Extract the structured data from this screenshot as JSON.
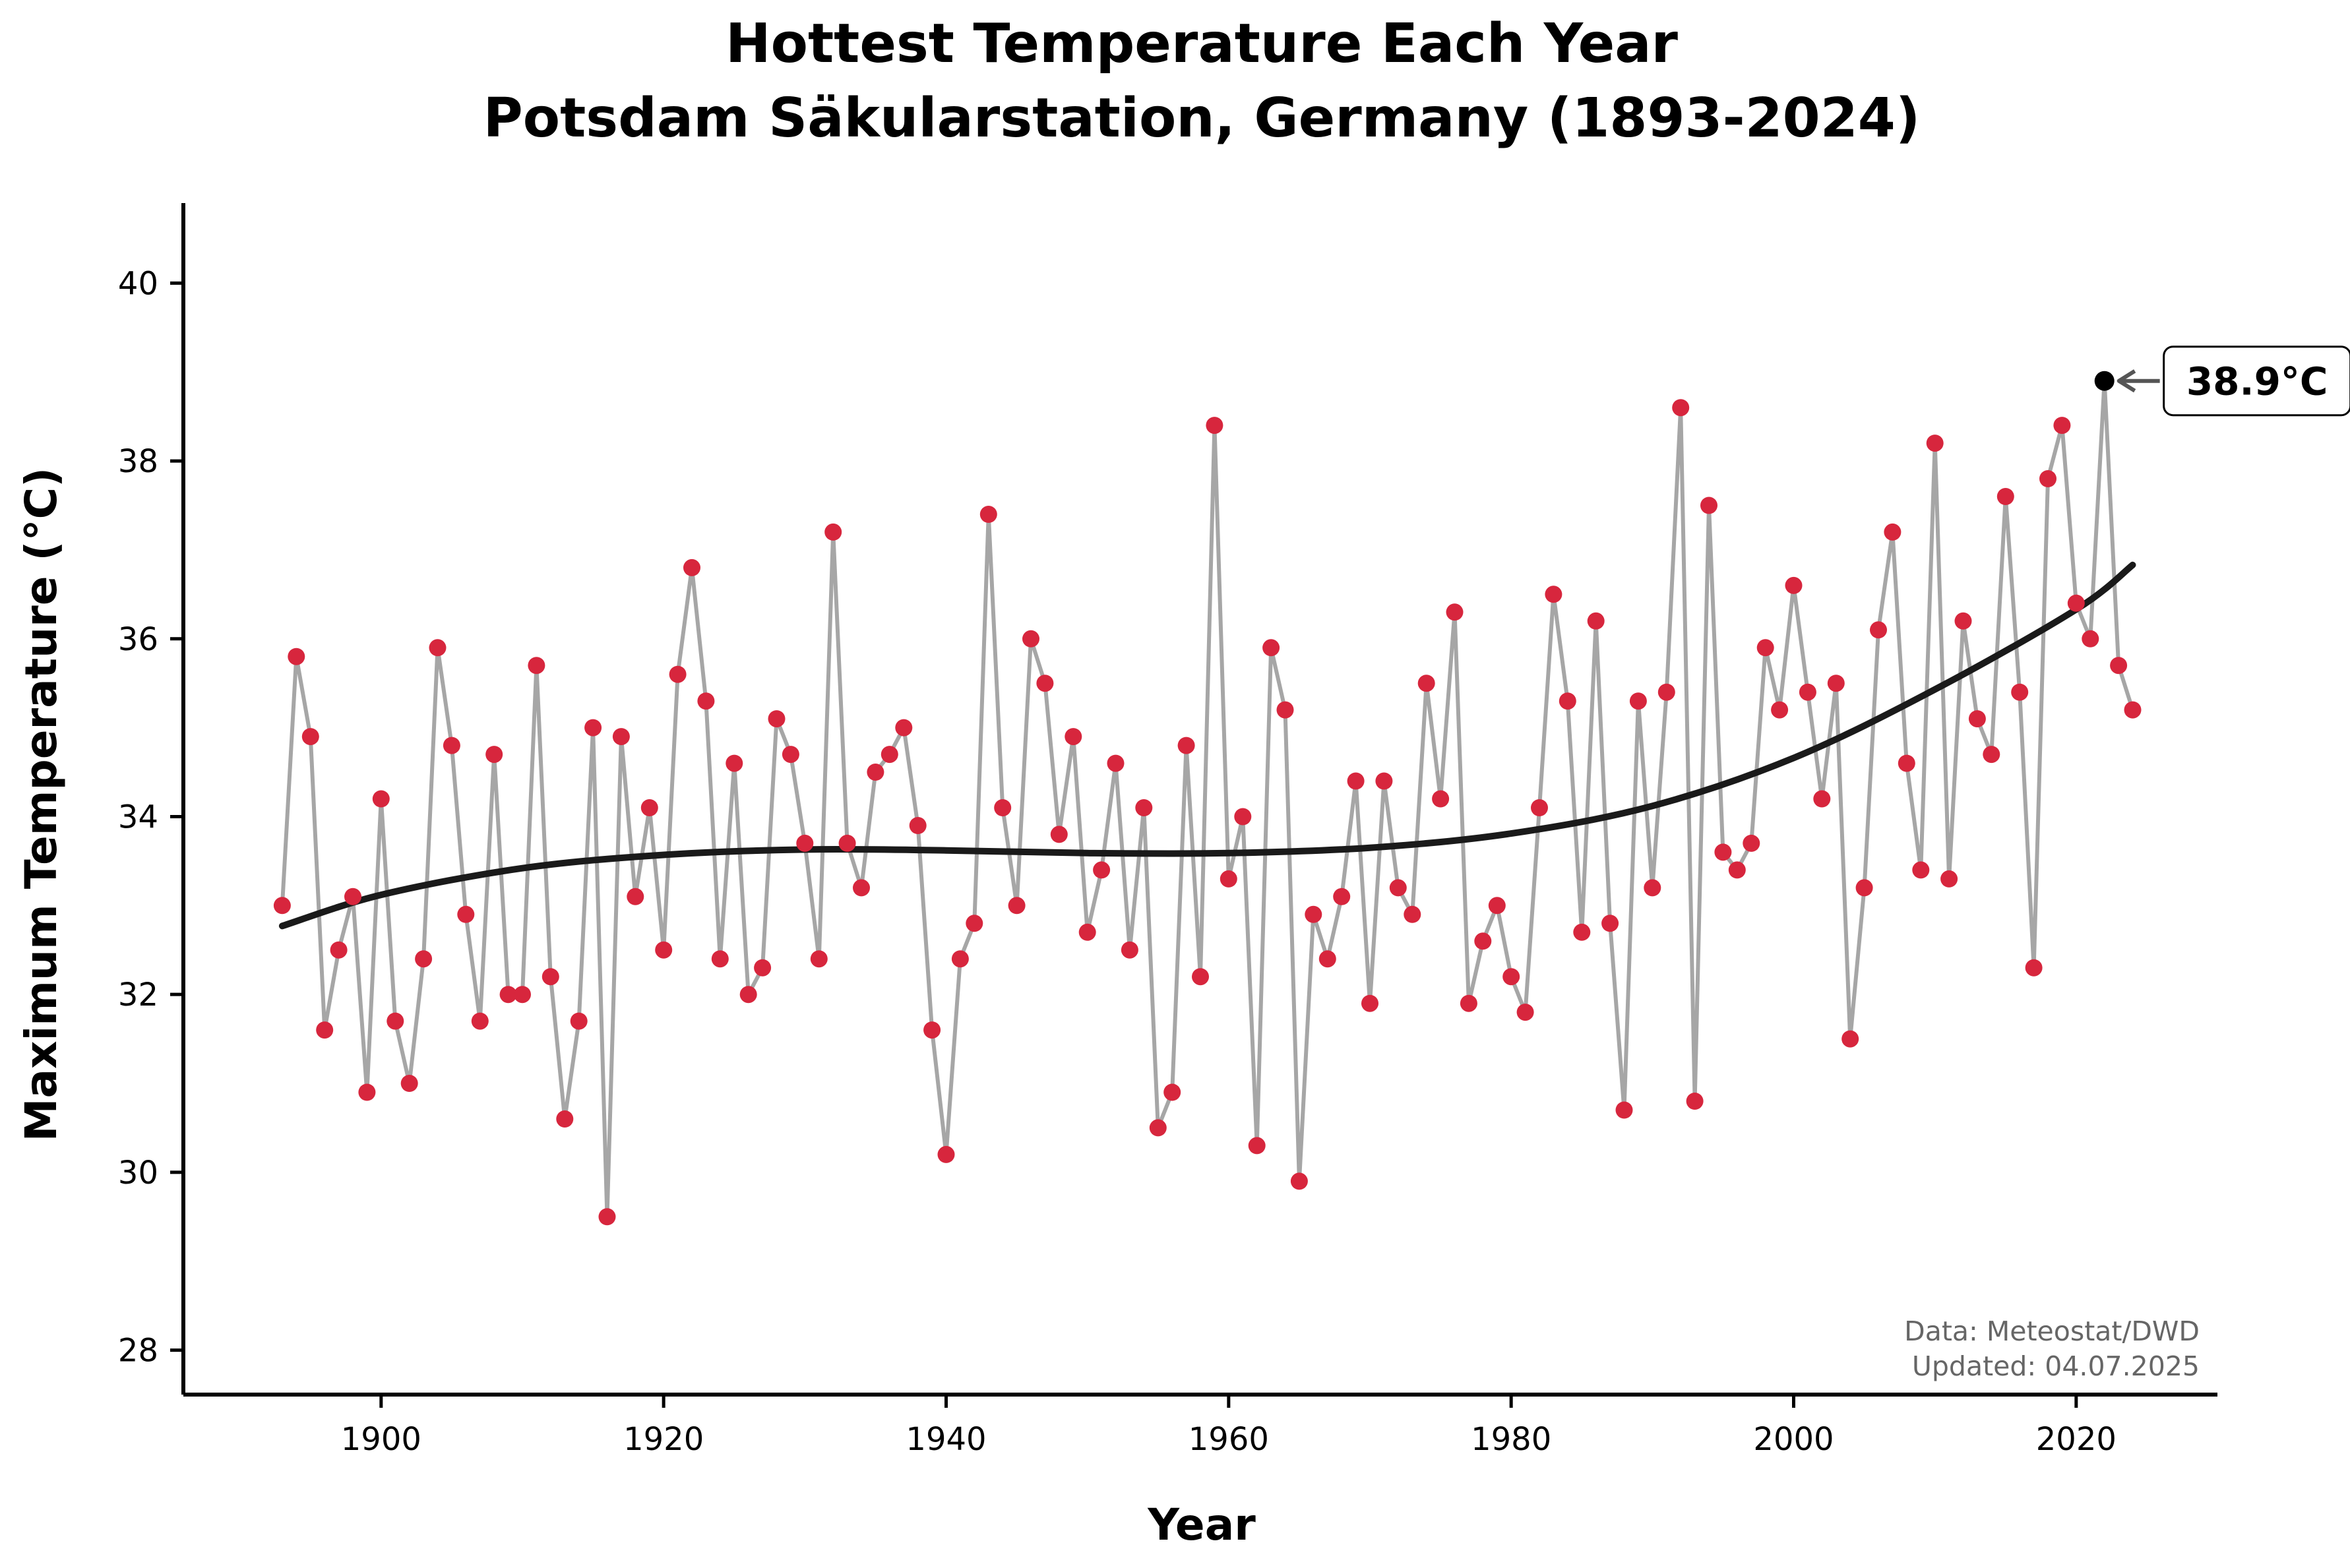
{
  "chart_data": {
    "type": "line",
    "title": "Hottest Temperature Each Year",
    "subtitle": "Potsdam Säkularstation, Germany (1893-2024)",
    "xlabel": "Year",
    "ylabel": "Maximum Temperature (°C)",
    "xlim": [
      1886,
      2030
    ],
    "ylim": [
      27.5,
      40.9
    ],
    "xticks": [
      1900,
      1920,
      1940,
      1960,
      1980,
      2000,
      2020
    ],
    "yticks": [
      28,
      30,
      32,
      34,
      36,
      38,
      40
    ],
    "grid": false,
    "colors": {
      "line": "#a6a6a6",
      "points": "#d7263d",
      "trend": "#1a1a1a",
      "highlight": "#000000",
      "source_text": "#666666",
      "arrow": "#555555"
    },
    "series": [
      {
        "style": "line-with-markers",
        "x": [
          1893,
          1894,
          1895,
          1896,
          1897,
          1898,
          1899,
          1900,
          1901,
          1902,
          1903,
          1904,
          1905,
          1906,
          1907,
          1908,
          1909,
          1910,
          1911,
          1912,
          1913,
          1914,
          1915,
          1916,
          1917,
          1918,
          1919,
          1920,
          1921,
          1922,
          1923,
          1924,
          1925,
          1926,
          1927,
          1928,
          1929,
          1930,
          1931,
          1932,
          1933,
          1934,
          1935,
          1936,
          1937,
          1938,
          1939,
          1940,
          1941,
          1942,
          1943,
          1944,
          1945,
          1946,
          1947,
          1948,
          1949,
          1950,
          1951,
          1952,
          1953,
          1954,
          1955,
          1956,
          1957,
          1958,
          1959,
          1960,
          1961,
          1962,
          1963,
          1964,
          1965,
          1966,
          1967,
          1968,
          1969,
          1970,
          1971,
          1972,
          1973,
          1974,
          1975,
          1976,
          1977,
          1978,
          1979,
          1980,
          1981,
          1982,
          1983,
          1984,
          1985,
          1986,
          1987,
          1988,
          1989,
          1990,
          1991,
          1992,
          1993,
          1994,
          1995,
          1996,
          1997,
          1998,
          1999,
          2000,
          2001,
          2002,
          2003,
          2004,
          2005,
          2006,
          2007,
          2008,
          2009,
          2010,
          2011,
          2012,
          2013,
          2014,
          2015,
          2016,
          2017,
          2018,
          2019,
          2020,
          2021,
          2022,
          2023,
          2024
        ],
        "values": [
          33.0,
          35.8,
          34.9,
          31.6,
          32.5,
          33.1,
          30.9,
          34.2,
          31.7,
          31.0,
          32.4,
          35.9,
          34.8,
          32.9,
          31.7,
          34.7,
          32.0,
          32.0,
          35.7,
          32.2,
          30.6,
          31.7,
          35.0,
          29.5,
          34.9,
          33.1,
          34.1,
          32.5,
          35.6,
          36.8,
          35.3,
          32.4,
          34.6,
          32.0,
          32.3,
          35.1,
          34.7,
          33.7,
          32.4,
          37.2,
          33.7,
          33.2,
          34.5,
          34.7,
          35.0,
          33.9,
          31.6,
          30.2,
          32.4,
          32.8,
          37.4,
          34.1,
          33.0,
          36.0,
          35.5,
          33.8,
          34.9,
          32.7,
          33.4,
          34.6,
          32.5,
          34.1,
          30.5,
          30.9,
          34.8,
          32.2,
          38.4,
          33.3,
          34.0,
          30.3,
          35.9,
          35.2,
          29.9,
          32.9,
          32.4,
          33.1,
          34.4,
          31.9,
          34.4,
          33.2,
          32.9,
          35.5,
          34.2,
          36.3,
          31.9,
          32.6,
          33.0,
          32.2,
          31.8,
          34.1,
          36.5,
          35.3,
          32.7,
          36.2,
          32.8,
          30.7,
          35.3,
          33.2,
          35.4,
          38.6,
          30.8,
          37.5,
          33.6,
          33.4,
          33.7,
          35.9,
          35.2,
          36.6,
          35.4,
          34.2,
          35.5,
          31.5,
          33.2,
          36.1,
          37.2,
          34.6,
          33.4,
          38.2,
          33.3,
          36.2,
          35.1,
          34.7,
          37.6,
          35.4,
          32.3,
          37.8,
          38.4,
          36.4,
          36.0,
          38.9,
          35.7,
          35.2
        ]
      },
      {
        "style": "smooth-trend",
        "x": [
          1893,
          1900,
          1910,
          1920,
          1930,
          1940,
          1950,
          1960,
          1970,
          1980,
          1990,
          2000,
          2010,
          2020,
          2024
        ],
        "values": [
          32.77,
          33.12,
          33.42,
          33.57,
          33.63,
          33.62,
          33.59,
          33.59,
          33.65,
          33.81,
          34.12,
          34.66,
          35.43,
          36.33,
          36.83
        ]
      }
    ],
    "highlight": {
      "year": 2022,
      "value": 38.9,
      "label": "38.9°C"
    },
    "source_lines": [
      "Data: Meteostat/DWD",
      "Updated: 04.07.2025"
    ]
  }
}
